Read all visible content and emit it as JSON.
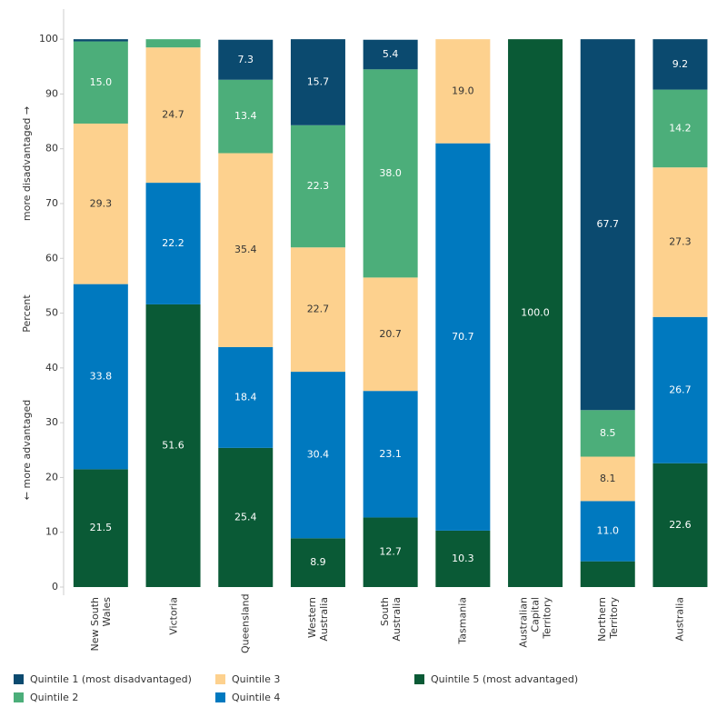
{
  "chart_data": {
    "type": "stacked_bar",
    "y_label": "Percent",
    "y_annotations": [
      "more disadvantaged →",
      "← more advantaged"
    ],
    "categories": [
      "New South Wales",
      "Victoria",
      "Queensland",
      "Western Australia",
      "South Australia",
      "Tasmania",
      "Australian Capital Territory",
      "Northern Territory",
      "Australia"
    ],
    "series": [
      {
        "name": "Quintile 1 (most disadvantaged)",
        "color": "#0b4a6f",
        "values": [
          0.4,
          0,
          7.3,
          15.7,
          5.4,
          0,
          0,
          67.7,
          9.2
        ],
        "value_labels": [
          null,
          null,
          "7.3",
          "15.7",
          "5.4",
          null,
          null,
          "67.7",
          "9.2"
        ]
      },
      {
        "name": "Quintile 2",
        "color": "#4cae7a",
        "values": [
          15.0,
          1.5,
          13.4,
          22.3,
          38.0,
          0,
          0,
          8.5,
          14.2
        ],
        "value_labels": [
          "15.0",
          null,
          "13.4",
          "22.3",
          "38.0",
          null,
          null,
          "8.5",
          "14.2"
        ]
      },
      {
        "name": "Quintile 3",
        "color": "#fdd18e",
        "values": [
          29.3,
          24.7,
          35.4,
          22.7,
          20.7,
          19.0,
          0,
          8.1,
          27.3
        ],
        "value_labels": [
          "29.3",
          "24.7",
          "35.4",
          "22.7",
          "20.7",
          "19.0",
          null,
          "8.1",
          "27.3"
        ]
      },
      {
        "name": "Quintile 4",
        "color": "#0079bf",
        "values": [
          33.8,
          22.2,
          18.4,
          30.4,
          23.1,
          70.7,
          0,
          11.0,
          26.7
        ],
        "value_labels": [
          "33.8",
          "22.2",
          "18.4",
          "30.4",
          "23.1",
          "70.7",
          null,
          "11.0",
          "26.7"
        ]
      },
      {
        "name": "Quintile 5 (most advantaged)",
        "color": "#0a5a36",
        "values": [
          21.5,
          51.6,
          25.4,
          8.9,
          12.7,
          10.3,
          100,
          4.7,
          22.6
        ],
        "value_labels": [
          "21.5",
          "51.6",
          "25.4",
          "8.9",
          "12.7",
          "10.3",
          "100.0",
          null,
          "22.6"
        ]
      }
    ],
    "ylim": [
      0,
      105
    ],
    "yticks": [
      0,
      10,
      20,
      30,
      40,
      50,
      60,
      70,
      80,
      90,
      100
    ],
    "grid": false
  }
}
